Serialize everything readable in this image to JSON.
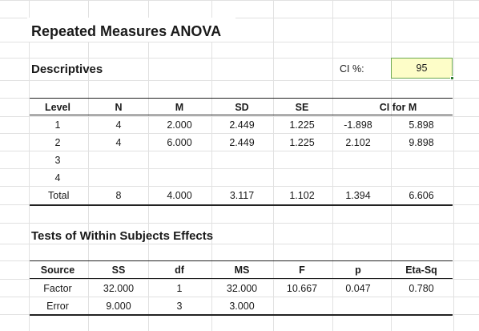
{
  "title": "Repeated Measures ANOVA",
  "descriptives": {
    "heading": "Descriptives",
    "ci_label": "CI %:",
    "ci_value": "95",
    "headers": [
      "Level",
      "N",
      "M",
      "SD",
      "SE",
      "CI for M"
    ],
    "rows": [
      [
        "1",
        "4",
        "2.000",
        "2.449",
        "1.225",
        "-1.898",
        "5.898"
      ],
      [
        "2",
        "4",
        "6.000",
        "2.449",
        "1.225",
        "2.102",
        "9.898"
      ],
      [
        "3",
        "",
        "",
        "",
        "",
        "",
        ""
      ],
      [
        "4",
        "",
        "",
        "",
        "",
        "",
        ""
      ]
    ],
    "total": [
      "Total",
      "8",
      "4.000",
      "3.117",
      "1.102",
      "1.394",
      "6.606"
    ]
  },
  "tests": {
    "heading": "Tests of Within Subjects Effects",
    "headers": [
      "Source",
      "SS",
      "df",
      "MS",
      "F",
      "p",
      "Eta-Sq"
    ],
    "rows": [
      [
        "Factor",
        "32.000",
        "1",
        "32.000",
        "10.667",
        "0.047",
        "0.780"
      ],
      [
        "Error",
        "9.000",
        "3",
        "3.000",
        "",
        "",
        ""
      ]
    ]
  },
  "colors": {
    "ci_fill": "#fdfdc8",
    "ci_border": "#6aa84f",
    "grid": "#e1e1e1"
  }
}
